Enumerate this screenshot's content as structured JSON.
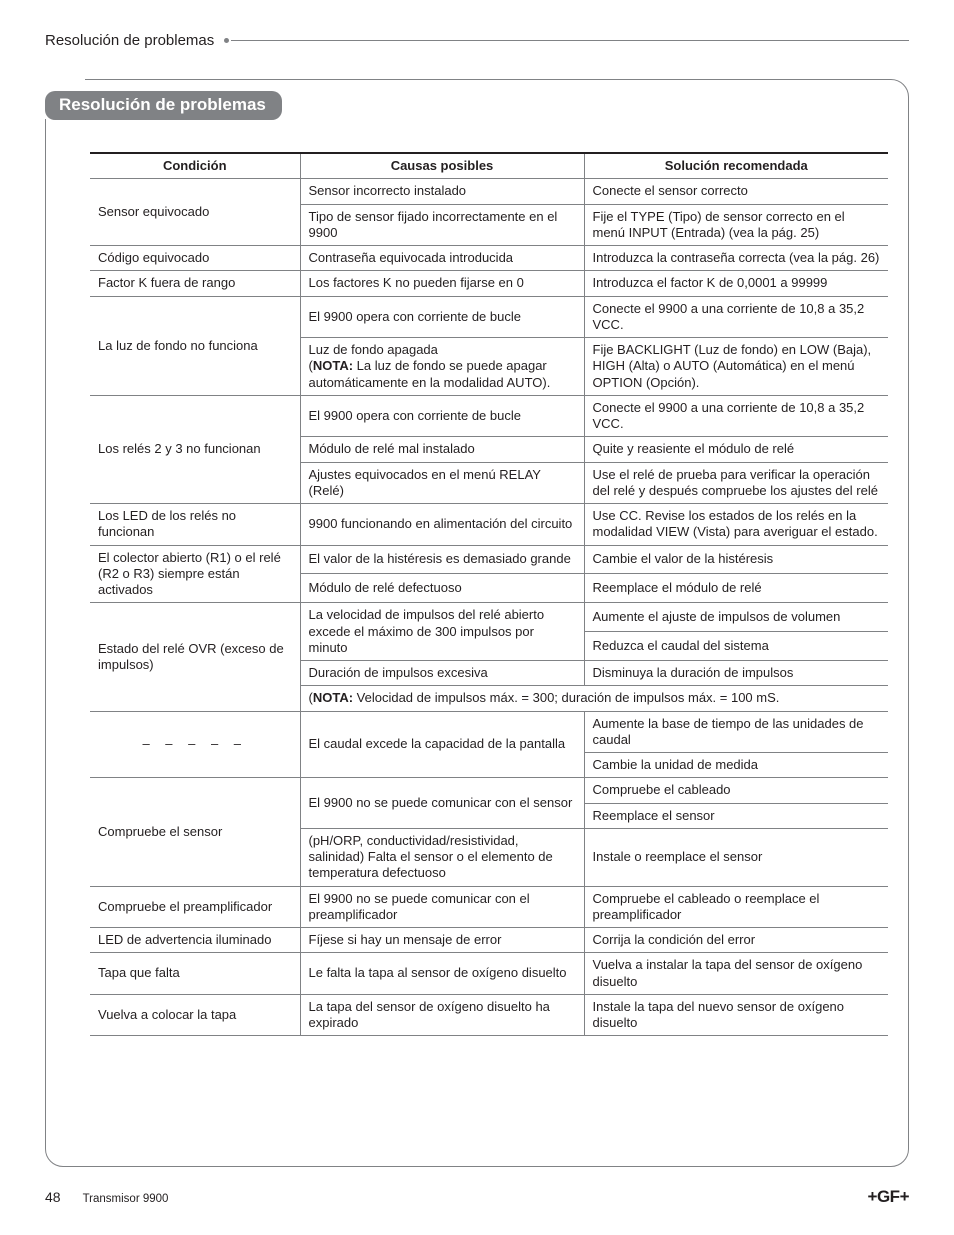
{
  "header": {
    "running_title": "Resolución de problemas"
  },
  "section": {
    "title": "Resolución de problemas"
  },
  "table": {
    "columns": [
      "Condición",
      "Causas posibles",
      "Solución recomendada"
    ],
    "cells": {
      "r1_cond": "Sensor equivocado",
      "r1_cause": "Sensor incorrecto instalado",
      "r1_sol": "Conecte el sensor correcto",
      "r2_cause": "Tipo de sensor fijado incorrectamente en el 9900",
      "r2_sol": "Fije el TYPE (Tipo) de sensor correcto en el menú INPUT (Entrada) (vea la pág. 25)",
      "r3_cond": "Código equivocado",
      "r3_cause": "Contraseña equivocada introducida",
      "r3_sol": "Introduzca la contraseña correcta (vea la pág. 26)",
      "r4_cond": "Factor K fuera de rango",
      "r4_cause": "Los factores K no pueden fijarse en 0",
      "r4_sol": "Introduzca el factor K de 0,0001 a 99999",
      "r5_cond": "La luz de fondo no funciona",
      "r5_cause": "El 9900 opera con corriente de bucle",
      "r5_sol": "Conecte el 9900 a una corriente de 10,8 a 35,2 VCC.",
      "r6_cause_a": "Luz de fondo apagada",
      "r6_cause_b_label": "NOTA:",
      "r6_cause_b": " La luz de fondo se puede apagar automáticamente en la modalidad AUTO).",
      "r6_sol": "Fije BACKLIGHT (Luz de fondo) en LOW (Baja), HIGH (Alta) o AUTO (Automática) en el menú OPTION (Opción).",
      "r7_cond": "Los relés 2 y 3 no funcionan",
      "r7_cause": "El 9900 opera con corriente de bucle",
      "r7_sol": "Conecte el 9900 a una corriente de 10,8 a 35,2 VCC.",
      "r8_cause": "Módulo de relé mal instalado",
      "r8_sol": "Quite y reasiente el módulo de relé",
      "r9_cause": "Ajustes equivocados en el menú RELAY (Relé)",
      "r9_sol": "Use el relé de prueba para verificar la operación del relé y después compruebe los ajustes del relé",
      "r10_cond": "Los LED de los relés no funcionan",
      "r10_cause": "9900 funcionando en alimentación del circuito",
      "r10_sol": "Use CC. Revise los estados de los relés en la modalidad VIEW (Vista) para averiguar el estado.",
      "r11_cond": "El colector abierto (R1) o el relé (R2 o R3) siempre están activados",
      "r11_cause": "El valor de la histéresis es demasiado grande",
      "r11_sol": "Cambie el valor de la histéresis",
      "r12_cause": "Módulo de relé defectuoso",
      "r12_sol": "Reemplace el módulo de relé",
      "r13_cond": "Estado del relé OVR (exceso de impulsos)",
      "r13_cause": "La velocidad de impulsos del relé abierto excede el máximo de 300 impulsos por minuto",
      "r13_sol": "Aumente el ajuste de impulsos de volumen",
      "r14_sol": "Reduzca el caudal del sistema",
      "r15_cause": "Duración de impulsos excesiva",
      "r15_sol": "Disminuya la duración de impulsos",
      "r16_note_label": "NOTA:",
      "r16_note": " Velocidad de impulsos máx. = 300; duración de impulsos máx. = 100 mS.",
      "r17_cond": "– – – – –",
      "r17_cause": "El caudal excede la capacidad de la pantalla",
      "r17_sol": "Aumente la base de tiempo de las unidades de caudal",
      "r18_sol": "Cambie la unidad de medida",
      "r19_cond": "Compruebe el sensor",
      "r19_cause": "El 9900 no se puede comunicar con el sensor",
      "r19_sol": "Compruebe el cableado",
      "r20_sol": "Reemplace el sensor",
      "r21_cause": "(pH/ORP, conductividad/resistividad, salinidad) Falta el sensor o el elemento de temperatura defectuoso",
      "r21_sol": "Instale o reemplace el sensor",
      "r22_cond": "Compruebe el preamplificador",
      "r22_cause": "El 9900 no se puede comunicar con el preamplificador",
      "r22_sol": "Compruebe el cableado o reemplace el preamplificador",
      "r23_cond": "LED de advertencia iluminado",
      "r23_cause": "Fíjese si hay un mensaje de error",
      "r23_sol": "Corrija la condición del error",
      "r24_cond": "Tapa que falta",
      "r24_cause": "Le falta la tapa al sensor de oxígeno disuelto",
      "r24_sol": "Vuelva a instalar la tapa del sensor de oxígeno disuelto",
      "r25_cond": "Vuelva a colocar la tapa",
      "r25_cause": "La tapa del sensor de oxígeno disuelto ha expirado",
      "r25_sol": "Instale la tapa del nuevo sensor de oxígeno disuelto"
    }
  },
  "footer": {
    "page_number": "48",
    "doc_title": "Transmisor 9900",
    "logo": "+GF+"
  }
}
